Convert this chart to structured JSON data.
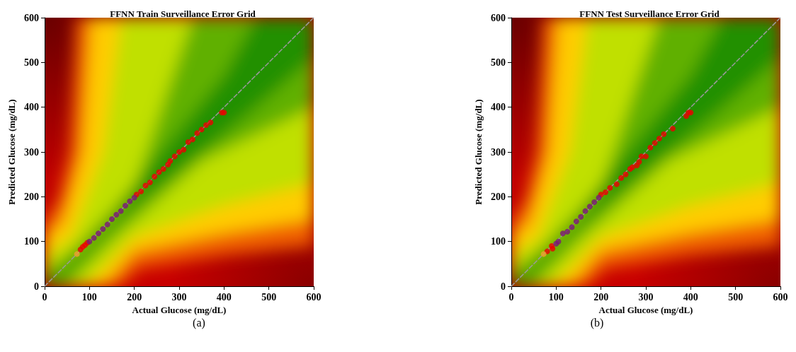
{
  "chart_data": [
    {
      "type": "scatter",
      "title": "FFNN Train Surveillance Error Grid",
      "xlabel": "Actual Glucose (mg/dL)",
      "ylabel": "Predicted Glucose (mg/dL)",
      "xlim": [
        0,
        600
      ],
      "ylim": [
        0,
        600
      ],
      "xticks": [
        0,
        100,
        200,
        300,
        400,
        500,
        600
      ],
      "yticks": [
        0,
        100,
        200,
        300,
        400,
        500,
        600
      ],
      "marker": "circle",
      "annotations": [
        "(a)"
      ],
      "series": [
        {
          "type": "line",
          "color": "#9a9a9a",
          "line_style": "dashed",
          "marker": "none",
          "x": [
            0,
            600
          ],
          "values": [
            0,
            600
          ]
        },
        {
          "color": "#ee0000",
          "x": [
            80,
            85,
            90,
            95,
            205,
            215,
            225,
            235,
            245,
            255,
            265,
            275,
            280,
            290,
            300,
            310,
            320,
            330,
            340,
            350,
            360,
            370,
            395,
            400
          ],
          "values": [
            82,
            88,
            92,
            97,
            205,
            212,
            225,
            232,
            245,
            255,
            262,
            272,
            280,
            290,
            300,
            305,
            322,
            328,
            342,
            350,
            360,
            366,
            388,
            388
          ]
        },
        {
          "color": "#7a1878",
          "x": [
            100,
            110,
            120,
            130,
            140,
            150,
            160,
            170,
            180,
            190,
            200
          ],
          "values": [
            100,
            108,
            118,
            128,
            138,
            150,
            160,
            168,
            180,
            190,
            198
          ]
        },
        {
          "color": "#f0a030",
          "x": [
            72
          ],
          "values": [
            72
          ]
        }
      ]
    },
    {
      "type": "scatter",
      "title": "FFNN Test Surveillance Error Grid",
      "xlabel": "Actual Glucose (mg/dL)",
      "ylabel": "Predicted Glucose (mg/dL)",
      "xlim": [
        0,
        600
      ],
      "ylim": [
        0,
        600
      ],
      "xticks": [
        0,
        100,
        200,
        300,
        400,
        500,
        600
      ],
      "yticks": [
        0,
        100,
        200,
        300,
        400,
        500,
        600
      ],
      "marker": "circle",
      "annotations": [
        "(b)"
      ],
      "series": [
        {
          "type": "line",
          "color": "#9a9a9a",
          "line_style": "dashed",
          "marker": "none",
          "x": [
            0,
            600
          ],
          "values": [
            0,
            600
          ]
        },
        {
          "color": "#ee0000",
          "x": [
            80,
            90,
            92,
            200,
            210,
            220,
            235,
            245,
            255,
            265,
            270,
            280,
            285,
            290,
            300,
            310,
            320,
            330,
            340,
            360,
            390,
            395,
            400
          ],
          "values": [
            78,
            90,
            84,
            205,
            210,
            220,
            228,
            242,
            250,
            262,
            266,
            270,
            278,
            290,
            290,
            310,
            320,
            330,
            340,
            352,
            380,
            388,
            388
          ]
        },
        {
          "color": "#7a1878",
          "x": [
            100,
            105,
            115,
            125,
            135,
            145,
            155,
            165,
            175,
            185,
            195
          ],
          "values": [
            95,
            100,
            118,
            122,
            132,
            145,
            155,
            168,
            178,
            188,
            198
          ]
        },
        {
          "color": "#f0a030",
          "x": [
            72
          ],
          "values": [
            72
          ]
        }
      ]
    }
  ]
}
